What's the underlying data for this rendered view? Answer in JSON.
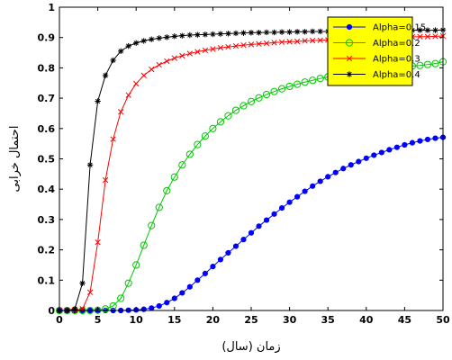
{
  "chart_data": {
    "type": "line",
    "xlabel": "زمان (سال)",
    "ylabel": "احتمال خرابی",
    "xlim": [
      0,
      50
    ],
    "ylim": [
      0,
      1
    ],
    "xticks": [
      0,
      5,
      10,
      15,
      20,
      25,
      30,
      35,
      40,
      45,
      50
    ],
    "yticks": [
      0,
      0.1,
      0.2,
      0.3,
      0.4,
      0.5,
      0.6,
      0.7,
      0.8,
      0.9,
      1
    ],
    "xtick_labels": [
      "0",
      "5",
      "10",
      "15",
      "20",
      "25",
      "30",
      "35",
      "40",
      "45",
      "50"
    ],
    "ytick_labels": [
      "0",
      "0.1",
      "0.2",
      "0.3",
      "0.4",
      "0.5",
      "0.6",
      "0.7",
      "0.8",
      "0.9",
      "1"
    ],
    "grid": false,
    "legend_position": "top-right",
    "legend_background": "#ffff00",
    "x": [
      0,
      1,
      2,
      3,
      4,
      5,
      6,
      7,
      8,
      9,
      10,
      11,
      12,
      13,
      14,
      15,
      16,
      17,
      18,
      19,
      20,
      21,
      22,
      23,
      24,
      25,
      26,
      27,
      28,
      29,
      30,
      31,
      32,
      33,
      34,
      35,
      36,
      37,
      38,
      39,
      40,
      41,
      42,
      43,
      44,
      45,
      46,
      47,
      48,
      49,
      50
    ],
    "series": [
      {
        "name": "Alpha=0.15",
        "color": "#0000ff",
        "marker": "dot",
        "values": [
          0,
          0,
          0,
          0,
          0,
          0,
          0,
          0,
          0,
          0.001,
          0.002,
          0.004,
          0.008,
          0.015,
          0.026,
          0.04,
          0.058,
          0.078,
          0.1,
          0.122,
          0.145,
          0.168,
          0.19,
          0.212,
          0.234,
          0.256,
          0.278,
          0.298,
          0.318,
          0.338,
          0.357,
          0.375,
          0.393,
          0.41,
          0.426,
          0.441,
          0.455,
          0.468,
          0.48,
          0.491,
          0.502,
          0.512,
          0.521,
          0.53,
          0.538,
          0.546,
          0.553,
          0.559,
          0.564,
          0.568,
          0.571
        ]
      },
      {
        "name": "Alpha=0.2",
        "color": "#00c800",
        "marker": "circle",
        "values": [
          0,
          0,
          0,
          0,
          0,
          0.001,
          0.005,
          0.015,
          0.04,
          0.09,
          0.15,
          0.215,
          0.28,
          0.34,
          0.395,
          0.44,
          0.48,
          0.515,
          0.547,
          0.575,
          0.6,
          0.622,
          0.642,
          0.66,
          0.675,
          0.689,
          0.701,
          0.712,
          0.722,
          0.731,
          0.739,
          0.746,
          0.753,
          0.759,
          0.765,
          0.77,
          0.775,
          0.779,
          0.783,
          0.787,
          0.79,
          0.793,
          0.796,
          0.799,
          0.801,
          0.804,
          0.806,
          0.808,
          0.811,
          0.814,
          0.82
        ]
      },
      {
        "name": "Alpha=0.3",
        "color": "#ff0000",
        "marker": "x",
        "values": [
          0,
          0,
          0,
          0.005,
          0.06,
          0.225,
          0.43,
          0.565,
          0.655,
          0.71,
          0.748,
          0.775,
          0.795,
          0.81,
          0.822,
          0.832,
          0.84,
          0.847,
          0.853,
          0.858,
          0.862,
          0.866,
          0.869,
          0.872,
          0.875,
          0.877,
          0.879,
          0.881,
          0.883,
          0.885,
          0.886,
          0.887,
          0.889,
          0.89,
          0.891,
          0.892,
          0.893,
          0.894,
          0.895,
          0.896,
          0.897,
          0.898,
          0.899,
          0.9,
          0.901,
          0.901,
          0.902,
          0.903,
          0.903,
          0.904,
          0.905
        ]
      },
      {
        "name": "Alpha=0.4",
        "color": "#000000",
        "marker": "star",
        "values": [
          0,
          0,
          0.005,
          0.09,
          0.48,
          0.69,
          0.775,
          0.825,
          0.855,
          0.872,
          0.882,
          0.889,
          0.894,
          0.898,
          0.901,
          0.904,
          0.906,
          0.908,
          0.909,
          0.91,
          0.911,
          0.912,
          0.913,
          0.914,
          0.915,
          0.916,
          0.916,
          0.917,
          0.917,
          0.918,
          0.918,
          0.919,
          0.919,
          0.92,
          0.92,
          0.92,
          0.921,
          0.921,
          0.921,
          0.922,
          0.922,
          0.922,
          0.923,
          0.923,
          0.923,
          0.923,
          0.924,
          0.924,
          0.924,
          0.924,
          0.925
        ]
      }
    ]
  }
}
